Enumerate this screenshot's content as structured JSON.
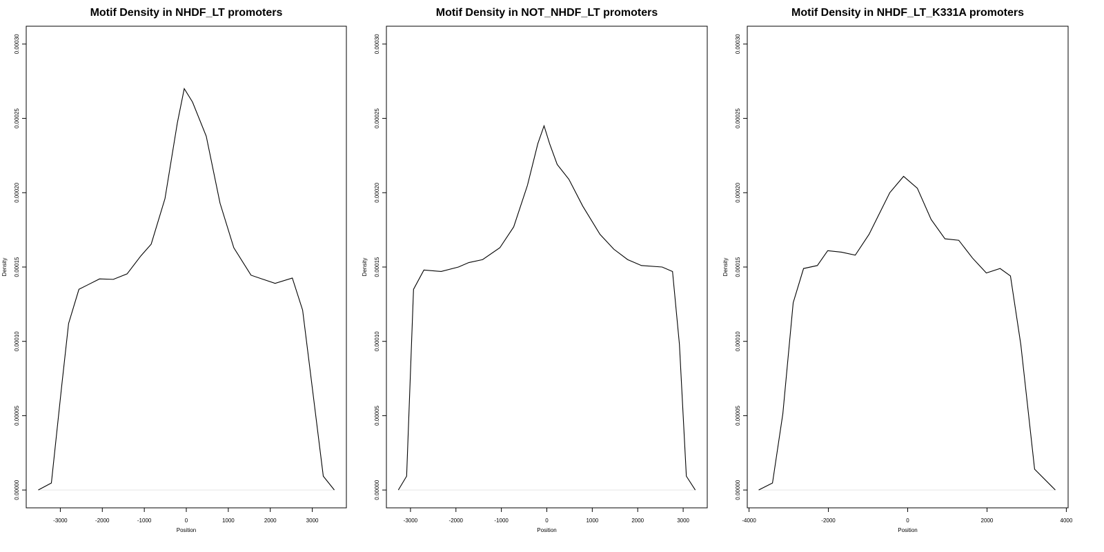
{
  "chart_data": [
    {
      "type": "line",
      "title": "Motif Density in NHDF_LT promoters",
      "xlabel": "Position",
      "ylabel": "Density",
      "color": "#000000",
      "xlim": [
        -3812,
        3812
      ],
      "ylim": [
        -1.2e-05,
        0.000312
      ],
      "xticks": [
        -3000,
        -2000,
        -1000,
        0,
        1000,
        2000,
        3000
      ],
      "yticks": [
        {
          "value": 0,
          "label": "0.00000"
        },
        {
          "value": 5e-05,
          "label": "0.00005"
        },
        {
          "value": 0.0001,
          "label": "0.00010"
        },
        {
          "value": 0.00015,
          "label": "0.00015"
        },
        {
          "value": 0.0002,
          "label": "0.00020"
        },
        {
          "value": 0.00025,
          "label": "0.00025"
        },
        {
          "value": 0.0003,
          "label": "0.00030"
        }
      ],
      "x": [
        -3525,
        -3213,
        -2967,
        -2803,
        -2557,
        -2066,
        -1738,
        -1410,
        -1082,
        -836,
        -508,
        -213,
        -49,
        148,
        475,
        803,
        1131,
        1541,
        2115,
        2525,
        2770,
        3016,
        3262,
        3525
      ],
      "values": [
        0,
        4.7e-06,
        7e-05,
        0.000112,
        0.000135,
        0.000142,
        0.0001417,
        0.0001454,
        0.0001575,
        0.0001654,
        0.000196,
        0.000247,
        0.00027,
        0.000261,
        0.000238,
        0.000193,
        0.000163,
        0.0001445,
        0.000139,
        0.0001426,
        0.000121,
        6.52e-05,
        9.3e-06,
        0
      ]
    },
    {
      "type": "line",
      "title": "Motif Density in NOT_NHDF_LT promoters",
      "xlabel": "Position",
      "ylabel": "Density",
      "color": "#000000",
      "xlim": [
        -3530,
        3530
      ],
      "ylim": [
        -1.2e-05,
        0.000312
      ],
      "xticks": [
        -3000,
        -2000,
        -1000,
        0,
        1000,
        2000,
        3000
      ],
      "yticks": [
        {
          "value": 0,
          "label": "0.00000"
        },
        {
          "value": 5e-05,
          "label": "0.00005"
        },
        {
          "value": 0.0001,
          "label": "0.00010"
        },
        {
          "value": 0.00015,
          "label": "0.00015"
        },
        {
          "value": 0.0002,
          "label": "0.00020"
        },
        {
          "value": 0.00025,
          "label": "0.00025"
        },
        {
          "value": 0.0003,
          "label": "0.00030"
        }
      ],
      "x": [
        -3267,
        -3085,
        -2933,
        -2705,
        -2325,
        -1945,
        -1717,
        -1413,
        -1033,
        -729,
        -426,
        -198,
        -61,
        61,
        228,
        486,
        790,
        1170,
        1474,
        1778,
        2082,
        2538,
        2766,
        2918,
        3070,
        3267
      ],
      "values": [
        0,
        9.3e-06,
        0.000135,
        0.000148,
        0.000147,
        0.00015,
        0.000153,
        0.000155,
        0.000163,
        0.000177,
        0.000205,
        0.000233,
        0.000245,
        0.000233,
        0.000219,
        0.000209,
        0.000191,
        0.000172,
        0.000162,
        0.000155,
        0.000151,
        0.00015,
        0.000147,
        9.79e-05,
        9.3e-06,
        0
      ]
    },
    {
      "type": "line",
      "title": "Motif Density in NHDF_LT_K331A promoters",
      "xlabel": "Position",
      "ylabel": "Density",
      "color": "#000000",
      "xlim": [
        -4045,
        4045
      ],
      "ylim": [
        -1.2e-05,
        0.000312
      ],
      "xticks": [
        -4000,
        -2000,
        0,
        2000,
        4000
      ],
      "yticks": [
        {
          "value": 0,
          "label": "0.00000"
        },
        {
          "value": 5e-05,
          "label": "0.00005"
        },
        {
          "value": 0.0001,
          "label": "0.00010"
        },
        {
          "value": 0.00015,
          "label": "0.00015"
        },
        {
          "value": 0.0002,
          "label": "0.00020"
        },
        {
          "value": 0.00025,
          "label": "0.00025"
        },
        {
          "value": 0.0003,
          "label": "0.00030"
        }
      ],
      "x": [
        -3757,
        -3409,
        -3148,
        -2887,
        -2626,
        -2278,
        -2017,
        -1670,
        -1322,
        -974,
        -452,
        -104,
        243,
        591,
        939,
        1287,
        1635,
        1983,
        2330,
        2591,
        2852,
        3200,
        3722
      ],
      "values": [
        0,
        4.7e-06,
        5.13e-05,
        0.000126,
        0.000149,
        0.000151,
        0.000161,
        0.00016,
        0.000158,
        0.000172,
        0.0002,
        0.000211,
        0.000203,
        0.000182,
        0.000169,
        0.000168,
        0.000156,
        0.000146,
        0.000149,
        0.000144,
        9.79e-05,
        1.4e-05,
        0
      ]
    }
  ]
}
